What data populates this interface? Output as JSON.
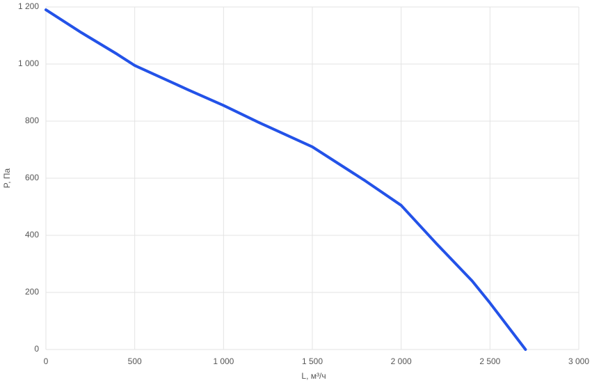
{
  "chart_data": {
    "type": "line",
    "x_label": "L, м³/ч",
    "y_label": "P, Па",
    "x": [
      0,
      200,
      400,
      500,
      800,
      1000,
      1200,
      1500,
      1800,
      2000,
      2200,
      2400,
      2500,
      2700
    ],
    "series": [
      {
        "name": "P",
        "color": "#2352e8",
        "values": [
          1190,
          1110,
          1035,
          995,
          910,
          855,
          795,
          710,
          590,
          505,
          370,
          240,
          163,
          0
        ]
      }
    ],
    "xlim": [
      0,
      3000
    ],
    "xticks": [
      0,
      500,
      {
        "value": 1000,
        "label": "1 000"
      },
      {
        "value": 1500,
        "label": "1 500"
      },
      {
        "value": 2000,
        "label": "2 000"
      },
      {
        "value": 2500,
        "label": "2 500"
      },
      {
        "value": 3000,
        "label": "3 000"
      }
    ],
    "ylim": [
      0,
      1200
    ],
    "yticks": [
      0,
      200,
      400,
      600,
      800,
      {
        "value": 1000,
        "label": "1 000"
      },
      {
        "value": 1200,
        "label": "1 200"
      }
    ],
    "grid": true
  }
}
